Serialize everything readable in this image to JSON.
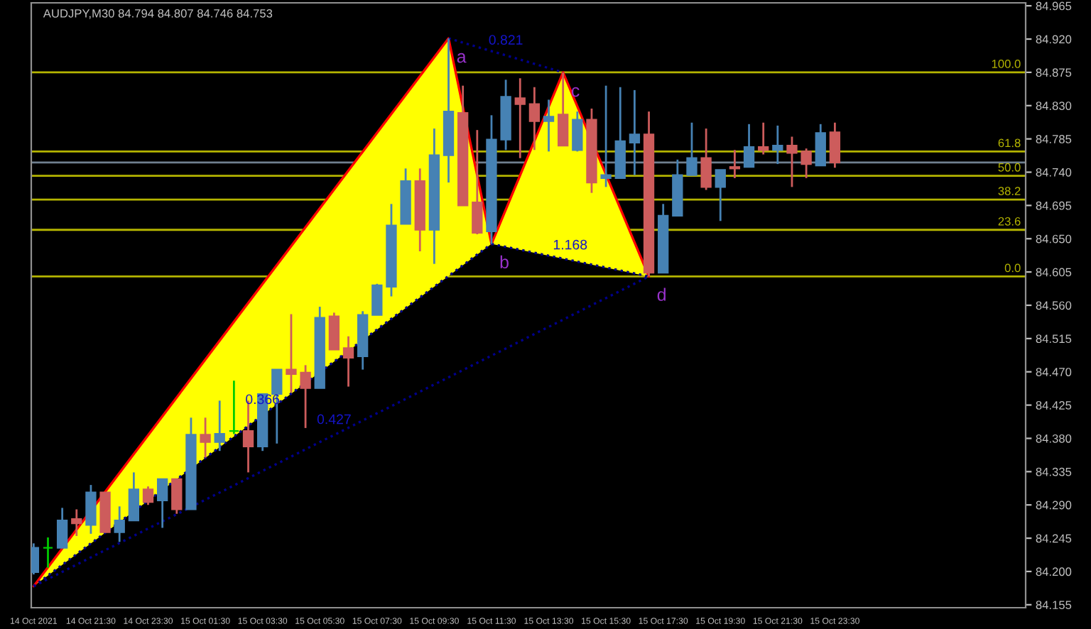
{
  "chart_data": {
    "type": "candlestick",
    "title": "AUDJPY,M30 84.794 84.807 84.746 84.753",
    "x": [
      "2021-10-14T19:30",
      "2021-10-14T20:00",
      "2021-10-14T20:30",
      "2021-10-14T21:00",
      "2021-10-14T21:30",
      "2021-10-14T22:00",
      "2021-10-14T22:30",
      "2021-10-14T23:00",
      "2021-10-14T23:30",
      "2021-10-15T00:00",
      "2021-10-15T00:30",
      "2021-10-15T01:00",
      "2021-10-15T01:30",
      "2021-10-15T02:00",
      "2021-10-15T02:30",
      "2021-10-15T03:00",
      "2021-10-15T03:30",
      "2021-10-15T04:00",
      "2021-10-15T04:30",
      "2021-10-15T05:00",
      "2021-10-15T05:30",
      "2021-10-15T06:00",
      "2021-10-15T06:30",
      "2021-10-15T07:00",
      "2021-10-15T07:30",
      "2021-10-15T08:00",
      "2021-10-15T08:30",
      "2021-10-15T09:00",
      "2021-10-15T09:30",
      "2021-10-15T10:00",
      "2021-10-15T10:30",
      "2021-10-15T11:00",
      "2021-10-15T11:30",
      "2021-10-15T12:00",
      "2021-10-15T12:30",
      "2021-10-15T13:00",
      "2021-10-15T13:30",
      "2021-10-15T14:00",
      "2021-10-15T14:30",
      "2021-10-15T15:00",
      "2021-10-15T15:30",
      "2021-10-15T16:00",
      "2021-10-15T16:30",
      "2021-10-15T17:00",
      "2021-10-15T17:30",
      "2021-10-15T18:00",
      "2021-10-15T18:30",
      "2021-10-15T19:00",
      "2021-10-15T19:30",
      "2021-10-15T20:00",
      "2021-10-15T20:30",
      "2021-10-15T21:00",
      "2021-10-15T21:30",
      "2021-10-15T22:00",
      "2021-10-15T22:30",
      "2021-10-15T23:00",
      "2021-10-15T23:30"
    ],
    "ohlc": [
      [
        84.199,
        84.238,
        84.196,
        84.232
      ],
      [
        84.232,
        84.246,
        84.205,
        84.232
      ],
      [
        84.232,
        84.286,
        84.232,
        84.269
      ],
      [
        84.271,
        84.284,
        84.248,
        84.265
      ],
      [
        84.263,
        84.317,
        84.251,
        84.307
      ],
      [
        84.307,
        84.307,
        84.253,
        84.253
      ],
      [
        84.253,
        84.288,
        84.24,
        84.269
      ],
      [
        84.269,
        84.334,
        84.269,
        84.311
      ],
      [
        84.311,
        84.315,
        84.29,
        84.294
      ],
      [
        84.296,
        84.325,
        84.259,
        84.325
      ],
      [
        84.325,
        84.325,
        84.278,
        84.284
      ],
      [
        84.284,
        84.408,
        84.284,
        84.385
      ],
      [
        84.385,
        84.408,
        84.354,
        84.375
      ],
      [
        84.375,
        84.431,
        84.363,
        84.386
      ],
      [
        84.39,
        84.458,
        84.386,
        84.39
      ],
      [
        84.39,
        84.431,
        84.334,
        84.369
      ],
      [
        84.369,
        84.44,
        84.363,
        84.44
      ],
      [
        84.44,
        84.473,
        84.373,
        84.473
      ],
      [
        84.473,
        84.548,
        84.442,
        84.467
      ],
      [
        84.469,
        84.479,
        84.394,
        84.448
      ],
      [
        84.448,
        84.558,
        84.448,
        84.543
      ],
      [
        84.545,
        84.55,
        84.5,
        84.5
      ],
      [
        84.502,
        84.518,
        84.45,
        84.489
      ],
      [
        84.491,
        84.552,
        84.473,
        84.547
      ],
      [
        84.547,
        84.589,
        84.547,
        84.587
      ],
      [
        84.585,
        84.697,
        84.572,
        84.668
      ],
      [
        84.67,
        84.745,
        84.67,
        84.728
      ],
      [
        84.728,
        84.745,
        84.633,
        84.662
      ],
      [
        84.662,
        84.799,
        84.616,
        84.763
      ],
      [
        84.763,
        84.921,
        84.726,
        84.822
      ],
      [
        84.82,
        84.857,
        84.695,
        84.695
      ],
      [
        84.699,
        84.797,
        84.656,
        84.658
      ],
      [
        84.66,
        84.817,
        84.643,
        84.784
      ],
      [
        84.784,
        84.865,
        84.77,
        84.842
      ],
      [
        84.84,
        84.867,
        84.759,
        84.832
      ],
      [
        84.832,
        84.855,
        84.77,
        84.809
      ],
      [
        84.809,
        84.838,
        84.768,
        84.815
      ],
      [
        84.818,
        84.875,
        84.776,
        84.776
      ],
      [
        84.77,
        84.822,
        84.768,
        84.811
      ],
      [
        84.811,
        84.826,
        84.712,
        84.726
      ],
      [
        84.732,
        84.857,
        84.72,
        84.736
      ],
      [
        84.732,
        84.855,
        84.732,
        84.782
      ],
      [
        84.78,
        84.851,
        84.736,
        84.791
      ],
      [
        84.791,
        84.822,
        84.599,
        84.604
      ],
      [
        84.604,
        84.697,
        84.604,
        84.681
      ],
      [
        84.681,
        84.757,
        84.681,
        84.736
      ],
      [
        84.736,
        84.807,
        84.736,
        84.759
      ],
      [
        84.759,
        84.799,
        84.716,
        84.72
      ],
      [
        84.72,
        84.743,
        84.674,
        84.743
      ],
      [
        84.747,
        84.77,
        84.732,
        84.745
      ],
      [
        84.747,
        84.805,
        84.747,
        84.774
      ],
      [
        84.774,
        84.807,
        84.764,
        84.77
      ],
      [
        84.77,
        84.803,
        84.751,
        84.776
      ],
      [
        84.776,
        84.788,
        84.72,
        84.766
      ],
      [
        84.768,
        84.772,
        84.732,
        84.751
      ],
      [
        84.749,
        84.805,
        84.749,
        84.793
      ],
      [
        84.794,
        84.807,
        84.746,
        84.753
      ]
    ],
    "colors": [
      "#4682b4",
      "#00cc00",
      "#4682b4",
      "#cd5c5c",
      "#4682b4",
      "#cd5c5c",
      "#4682b4",
      "#4682b4",
      "#cd5c5c",
      "#4682b4",
      "#cd5c5c",
      "#4682b4",
      "#cd5c5c",
      "#4682b4",
      "#00cc00",
      "#cd5c5c",
      "#4682b4",
      "#4682b4",
      "#cd5c5c",
      "#cd5c5c",
      "#4682b4",
      "#cd5c5c",
      "#cd5c5c",
      "#4682b4",
      "#4682b4",
      "#4682b4",
      "#4682b4",
      "#cd5c5c",
      "#4682b4",
      "#4682b4",
      "#cd5c5c",
      "#cd5c5c",
      "#4682b4",
      "#4682b4",
      "#cd5c5c",
      "#cd5c5c",
      "#4682b4",
      "#cd5c5c",
      "#4682b4",
      "#cd5c5c",
      "#4682b4",
      "#4682b4",
      "#4682b4",
      "#cd5c5c",
      "#4682b4",
      "#4682b4",
      "#4682b4",
      "#cd5c5c",
      "#4682b4",
      "#cd5c5c",
      "#4682b4",
      "#cd5c5c",
      "#4682b4",
      "#cd5c5c",
      "#cd5c5c",
      "#4682b4",
      "#cd5c5c"
    ],
    "series": [
      {
        "type": "area",
        "color": "#ffff00",
        "x": [
          "2021-10-14T19:30",
          "2021-10-15T10:00",
          "2021-10-15T11:30"
        ],
        "values": [
          84.18,
          84.921,
          84.643
        ]
      },
      {
        "type": "area",
        "color": "#ffff00",
        "x": [
          "2021-10-15T11:30",
          "2021-10-15T14:00",
          "2021-10-15T17:00"
        ],
        "values": [
          84.643,
          84.875,
          84.599
        ]
      },
      {
        "type": "line",
        "color": "#ff0000",
        "line_style": "solid",
        "x": [
          "2021-10-14T19:30",
          "2021-10-15T10:00",
          "2021-10-15T11:30",
          "2021-10-15T14:00",
          "2021-10-15T17:00"
        ],
        "values": [
          84.18,
          84.921,
          84.643,
          84.875,
          84.599
        ]
      },
      {
        "type": "line",
        "color": "#00008b",
        "line_style": "dotted",
        "x": [
          "2021-10-14T19:30",
          "2021-10-15T11:30"
        ],
        "values": [
          84.18,
          84.643
        ]
      },
      {
        "type": "line",
        "color": "#00008b",
        "line_style": "dotted",
        "x": [
          "2021-10-15T10:00",
          "2021-10-15T14:00"
        ],
        "values": [
          84.921,
          84.875
        ]
      },
      {
        "type": "line",
        "color": "#00008b",
        "line_style": "dotted",
        "x": [
          "2021-10-15T11:30",
          "2021-10-15T17:00"
        ],
        "values": [
          84.643,
          84.599
        ]
      },
      {
        "type": "line",
        "color": "#00008b",
        "line_style": "dotted",
        "x": [
          "2021-10-14T19:30",
          "2021-10-15T17:00"
        ],
        "values": [
          84.18,
          84.599
        ]
      }
    ],
    "annotations": [
      {
        "text": "a",
        "x": "2021-10-15T10:00",
        "y": 84.921
      },
      {
        "text": "b",
        "x": "2021-10-15T11:30",
        "y": 84.643
      },
      {
        "text": "c",
        "x": "2021-10-15T14:00",
        "y": 84.875
      },
      {
        "text": "d",
        "x": "2021-10-15T17:00",
        "y": 84.599
      },
      {
        "text": "0.821",
        "x": "2021-10-15T12:00",
        "y": 84.898
      },
      {
        "text": "0.366",
        "x": "2021-10-15T03:30",
        "y": 84.412
      },
      {
        "text": "0.427",
        "x": "2021-10-15T06:00",
        "y": 84.385
      },
      {
        "text": "1.168",
        "x": "2021-10-15T14:15",
        "y": 84.621
      },
      {
        "text": "100.0",
        "x": "2021-10-16T06:00",
        "y": 84.875
      },
      {
        "text": "61.8",
        "x": "2021-10-16T06:00",
        "y": 84.768
      },
      {
        "text": "50.0",
        "x": "2021-10-16T06:00",
        "y": 84.735
      },
      {
        "text": "38.2",
        "x": "2021-10-16T06:00",
        "y": 84.703
      },
      {
        "text": "23.6",
        "x": "2021-10-16T06:00",
        "y": 84.662
      },
      {
        "text": "0.0",
        "x": "2021-10-16T06:00",
        "y": 84.599
      }
    ],
    "ref_lines": [
      {
        "axis": "y",
        "value": 84.875,
        "color": "#b4b400"
      },
      {
        "axis": "y",
        "value": 84.768,
        "color": "#b4b400"
      },
      {
        "axis": "y",
        "value": 84.735,
        "color": "#b4b400"
      },
      {
        "axis": "y",
        "value": 84.703,
        "color": "#b4b400"
      },
      {
        "axis": "y",
        "value": 84.662,
        "color": "#b4b400"
      },
      {
        "axis": "y",
        "value": 84.599,
        "color": "#b4b400"
      },
      {
        "axis": "y",
        "value": 84.753,
        "color": "#708090"
      }
    ],
    "xlim": [
      "2021-10-14T19:25",
      "2021-10-16T06:10"
    ],
    "xticks": [
      {
        "value": "2021-10-14T19:30",
        "label": "14 Oct 2021"
      },
      {
        "value": "2021-10-14T21:30",
        "label": "14 Oct 21:30"
      },
      {
        "value": "2021-10-14T23:30",
        "label": "14 Oct 23:30"
      },
      {
        "value": "2021-10-15T01:30",
        "label": "15 Oct 01:30"
      },
      {
        "value": "2021-10-15T03:30",
        "label": "15 Oct 03:30"
      },
      {
        "value": "2021-10-15T05:30",
        "label": "15 Oct 05:30"
      },
      {
        "value": "2021-10-15T07:30",
        "label": "15 Oct 07:30"
      },
      {
        "value": "2021-10-15T09:30",
        "label": "15 Oct 09:30"
      },
      {
        "value": "2021-10-15T11:30",
        "label": "15 Oct 11:30"
      },
      {
        "value": "2021-10-15T13:30",
        "label": "15 Oct 13:30"
      },
      {
        "value": "2021-10-15T15:30",
        "label": "15 Oct 15:30"
      },
      {
        "value": "2021-10-15T17:30",
        "label": "15 Oct 17:30"
      },
      {
        "value": "2021-10-15T19:30",
        "label": "15 Oct 19:30"
      },
      {
        "value": "2021-10-15T21:30",
        "label": "15 Oct 21:30"
      },
      {
        "value": "2021-10-15T23:30",
        "label": "15 Oct 23:30"
      }
    ],
    "ylim": [
      84.151,
      84.969
    ],
    "yticks": [
      84.155,
      {
        "value": 84.2,
        "label": "84.200"
      },
      84.245,
      {
        "value": 84.29,
        "label": "84.290"
      },
      84.335,
      {
        "value": 84.38,
        "label": "84.380"
      },
      84.425,
      {
        "value": 84.47,
        "label": "84.470"
      },
      84.515,
      {
        "value": 84.56,
        "label": "84.560"
      },
      84.605,
      {
        "value": 84.65,
        "label": "84.650"
      },
      84.695,
      {
        "value": 84.74,
        "label": "84.740"
      },
      84.785,
      {
        "value": 84.83,
        "label": "84.830"
      },
      84.875,
      {
        "value": 84.92,
        "label": "84.920"
      },
      84.965
    ],
    "grid": false,
    "legend": false
  }
}
